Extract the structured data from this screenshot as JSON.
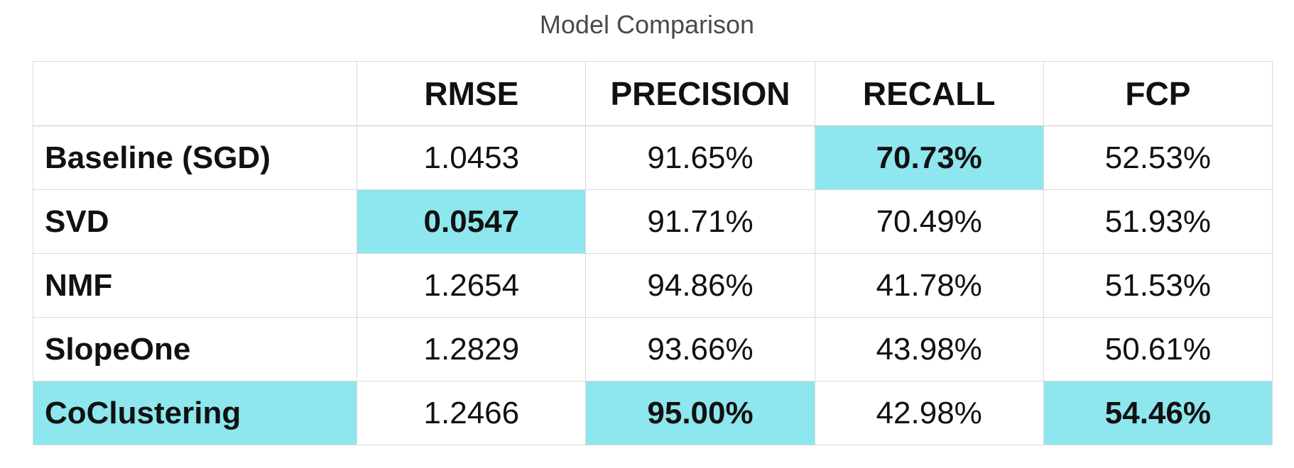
{
  "chart_data": {
    "type": "table",
    "title": "Model Comparison",
    "highlight_color": "#8ee6ee",
    "columns": [
      "",
      "RMSE",
      "PRECISION",
      "RECALL",
      "FCP"
    ],
    "rows": [
      {
        "model": "Baseline (SGD)",
        "cells": [
          "1.0453",
          "91.65%",
          "70.73%",
          "52.53%"
        ],
        "highlight": [
          false,
          false,
          true,
          false
        ],
        "model_highlight": false
      },
      {
        "model": "SVD",
        "cells": [
          "0.0547",
          "91.71%",
          "70.49%",
          "51.93%"
        ],
        "highlight": [
          true,
          false,
          false,
          false
        ],
        "model_highlight": false
      },
      {
        "model": "NMF",
        "cells": [
          "1.2654",
          "94.86%",
          "41.78%",
          "51.53%"
        ],
        "highlight": [
          false,
          false,
          false,
          false
        ],
        "model_highlight": false
      },
      {
        "model": "SlopeOne",
        "cells": [
          "1.2829",
          "93.66%",
          "43.98%",
          "50.61%"
        ],
        "highlight": [
          false,
          false,
          false,
          false
        ],
        "model_highlight": false
      },
      {
        "model": "CoClustering",
        "cells": [
          "1.2466",
          "95.00%",
          "42.98%",
          "54.46%"
        ],
        "highlight": [
          false,
          true,
          false,
          true
        ],
        "model_highlight": true
      }
    ]
  }
}
